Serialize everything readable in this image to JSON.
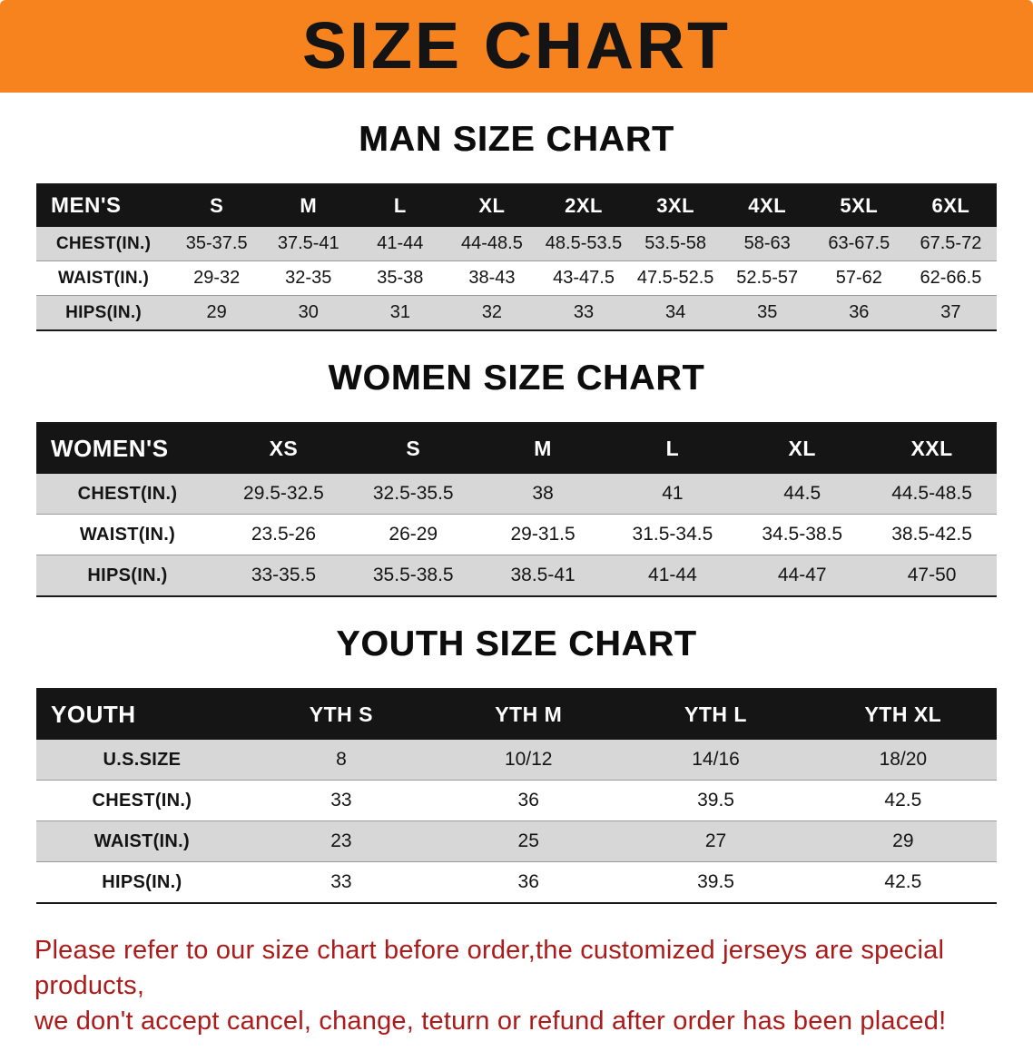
{
  "banner": {
    "title": "SIZE CHART"
  },
  "colors": {
    "banner_orange": "#F6831D",
    "header_black": "#151515",
    "row_gray": "#D7D7D7",
    "disclaimer_red": "#AC1A1A"
  },
  "sections": [
    {
      "heading": "MAN SIZE CHART",
      "table": {
        "header": [
          "MEN'S",
          "S",
          "M",
          "L",
          "XL",
          "2XL",
          "3XL",
          "4XL",
          "5XL",
          "6XL"
        ],
        "rows": [
          {
            "label": "CHEST(IN.)",
            "values": [
              "35-37.5",
              "37.5-41",
              "41-44",
              "44-48.5",
              "48.5-53.5",
              "53.5-58",
              "58-63",
              "63-67.5",
              "67.5-72"
            ]
          },
          {
            "label": "WAIST(IN.)",
            "values": [
              "29-32",
              "32-35",
              "35-38",
              "38-43",
              "43-47.5",
              "47.5-52.5",
              "52.5-57",
              "57-62",
              "62-66.5"
            ]
          },
          {
            "label": "HIPS(IN.)",
            "values": [
              "29",
              "30",
              "31",
              "32",
              "33",
              "34",
              "35",
              "36",
              "37"
            ]
          }
        ]
      }
    },
    {
      "heading": "WOMEN SIZE CHART",
      "table": {
        "header": [
          "WOMEN'S",
          "XS",
          "S",
          "M",
          "L",
          "XL",
          "XXL"
        ],
        "rows": [
          {
            "label": "CHEST(IN.)",
            "values": [
              "29.5-32.5",
              "32.5-35.5",
              "38",
              "41",
              "44.5",
              "44.5-48.5"
            ]
          },
          {
            "label": "WAIST(IN.)",
            "values": [
              "23.5-26",
              "26-29",
              "29-31.5",
              "31.5-34.5",
              "34.5-38.5",
              "38.5-42.5"
            ]
          },
          {
            "label": "HIPS(IN.)",
            "values": [
              "33-35.5",
              "35.5-38.5",
              "38.5-41",
              "41-44",
              "44-47",
              "47-50"
            ]
          }
        ]
      }
    },
    {
      "heading": "YOUTH SIZE CHART",
      "table": {
        "header": [
          "YOUTH",
          "YTH S",
          "YTH M",
          "YTH L",
          "YTH XL"
        ],
        "rows": [
          {
            "label": "U.S.SIZE",
            "values": [
              "8",
              "10/12",
              "14/16",
              "18/20"
            ]
          },
          {
            "label": "CHEST(IN.)",
            "values": [
              "33",
              "36",
              "39.5",
              "42.5"
            ]
          },
          {
            "label": "WAIST(IN.)",
            "values": [
              "23",
              "25",
              "27",
              "29"
            ]
          },
          {
            "label": "HIPS(IN.)",
            "values": [
              "33",
              "36",
              "39.5",
              "42.5"
            ]
          }
        ]
      }
    }
  ],
  "footer": {
    "line1": "Please refer to our size chart before order,the customized jerseys are special products,",
    "line2": "we don't accept cancel, change, teturn or refund after order has been placed!"
  }
}
